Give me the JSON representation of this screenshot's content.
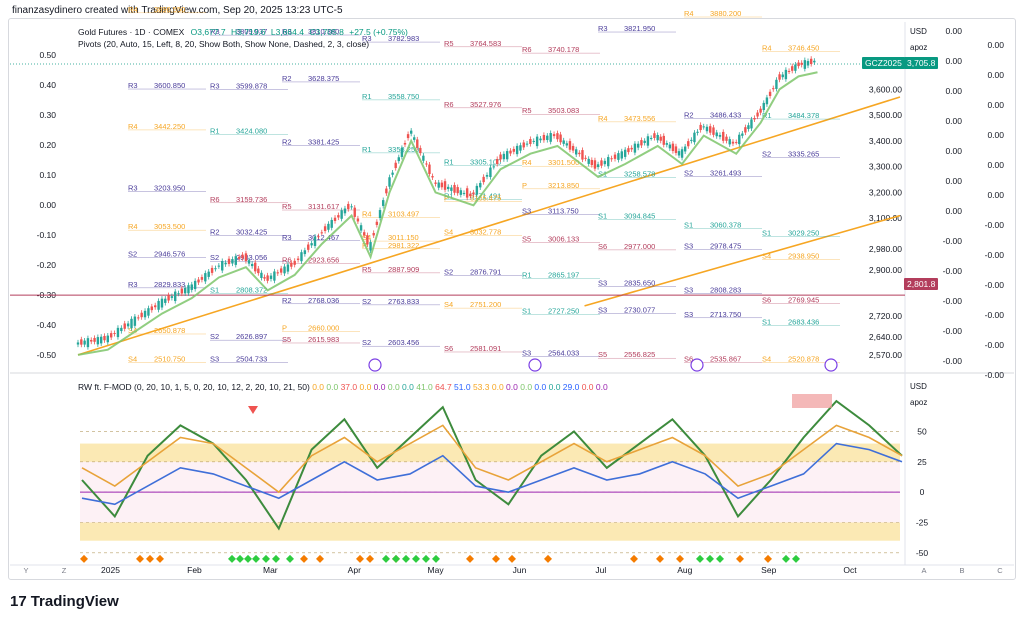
{
  "header": {
    "text": "finanzasydinero created with TradingView.com, Sep 20, 2025 13:23 UTC-5"
  },
  "brand": {
    "logo": "17",
    "name": "TradingView"
  },
  "main_legend": {
    "title": "Gold Futures · 1D · COMEX",
    "o": "O3,677.7",
    "h": "H3,719.6",
    "l": "L3,664.4",
    "c": "C3,705.8",
    "chg": "+27.5 (+0.75%)",
    "pivots": "Pivots (20, Auto, 15, Left, 8, 20, Show Both, Show None, Dashed, 2, 3, close)"
  },
  "osc_legend": {
    "name": "RW ft. F-MOD (0, 20, 10, 1, 5, 0, 20, 10, 12, 2, 20, 10, 21, 50)",
    "values": [
      "0.0",
      "0.0",
      "37.0",
      "0.0",
      "0.0",
      "0.0",
      "0.0",
      "41.0",
      "64.7",
      "51.0",
      "53.3",
      "0.0",
      "0.0",
      "0.0",
      "0.0",
      "0.0",
      "29.0",
      "0.0",
      "0.0"
    ]
  },
  "currency": "USD",
  "scale_mode": "apoz",
  "symbol_tag": "GCZ2025",
  "price_tag": "3,705.8",
  "line_tag": "2,801.8",
  "colors": {
    "up": "#26a69a",
    "down": "#ef5350",
    "trend": "#f6a623",
    "ma": "#7ec66b",
    "tag": "#089981",
    "line_tag": "#b33d5c"
  },
  "chart_data": [
    {
      "type": "candlestick",
      "title": "Gold Futures · 1D · COMEX",
      "x_ticks": [
        "2025",
        "Feb",
        "Mar",
        "Apr",
        "May",
        "Jun",
        "Jul",
        "Aug",
        "Sep",
        "Oct"
      ],
      "y_ticks": [
        "3,600.00",
        "3,500.00",
        "3,400.00",
        "3,300.00",
        "3,200.00",
        "3,100.00",
        "2,980.00",
        "2,900.00",
        "2,801.8",
        "2,720.00",
        "2,640.00",
        "2,570.00"
      ],
      "y_range": [
        2550,
        3760
      ],
      "left_ticks": [
        "0.50",
        "0.40",
        "0.30",
        "0.20",
        "0.10",
        "0.00",
        "-0.10",
        "-0.20",
        "-0.30",
        "-0.40",
        "-0.50"
      ],
      "close_path": [
        [
          "2024-12-20",
          2610
        ],
        [
          "2024-12-31",
          2630
        ],
        [
          "2025-01-10",
          2700
        ],
        [
          "2025-01-20",
          2770
        ],
        [
          "2025-01-31",
          2830
        ],
        [
          "2025-02-10",
          2910
        ],
        [
          "2025-02-20",
          2950
        ],
        [
          "2025-02-28",
          2860
        ],
        [
          "2025-03-10",
          2920
        ],
        [
          "2025-03-20",
          3040
        ],
        [
          "2025-03-31",
          3150
        ],
        [
          "2025-04-07",
          2990
        ],
        [
          "2025-04-14",
          3240
        ],
        [
          "2025-04-22",
          3440
        ],
        [
          "2025-05-01",
          3240
        ],
        [
          "2025-05-15",
          3190
        ],
        [
          "2025-05-25",
          3330
        ],
        [
          "2025-06-05",
          3390
        ],
        [
          "2025-06-15",
          3420
        ],
        [
          "2025-06-30",
          3300
        ],
        [
          "2025-07-10",
          3350
        ],
        [
          "2025-07-22",
          3420
        ],
        [
          "2025-07-31",
          3350
        ],
        [
          "2025-08-08",
          3460
        ],
        [
          "2025-08-20",
          3390
        ],
        [
          "2025-08-29",
          3510
        ],
        [
          "2025-09-05",
          3640
        ],
        [
          "2025-09-12",
          3690
        ],
        [
          "2025-09-19",
          3705.8
        ]
      ],
      "pivot_labels": [
        {
          "label": "R4",
          "value": "3896.550"
        },
        {
          "label": "R3",
          "value": "3809.937"
        },
        {
          "label": "R3",
          "value": "3810.380"
        },
        {
          "label": "R3",
          "value": "3782.983"
        },
        {
          "label": "R5",
          "value": "3764.583"
        },
        {
          "label": "R6",
          "value": "3740.178"
        },
        {
          "label": "R3",
          "value": "3821.950"
        },
        {
          "label": "R4",
          "value": "3880.200"
        },
        {
          "label": "R4",
          "value": "3746.450"
        },
        {
          "label": "R3",
          "value": "3600.850"
        },
        {
          "label": "R3",
          "value": "3599.878"
        },
        {
          "label": "R2",
          "value": "3628.375"
        },
        {
          "label": "R1",
          "value": "3558.750"
        },
        {
          "label": "R6",
          "value": "3527.976"
        },
        {
          "label": "R5",
          "value": "3503.083"
        },
        {
          "label": "R4",
          "value": "3473.556"
        },
        {
          "label": "R2",
          "value": "3486.433"
        },
        {
          "label": "R1",
          "value": "3484.378"
        },
        {
          "label": "R4",
          "value": "3442.250"
        },
        {
          "label": "R1",
          "value": "3424.080"
        },
        {
          "label": "R2",
          "value": "3381.425"
        },
        {
          "label": "R1",
          "value": "3353.250"
        },
        {
          "label": "R1",
          "value": "3305.100"
        },
        {
          "label": "R4",
          "value": "3301.500"
        },
        {
          "label": "S1",
          "value": "3258.578"
        },
        {
          "label": "S2",
          "value": "3261.493"
        },
        {
          "label": "S2",
          "value": "3335.265"
        },
        {
          "label": "R3",
          "value": "3203.950"
        },
        {
          "label": "R6",
          "value": "3159.736"
        },
        {
          "label": "R5",
          "value": "3131.617"
        },
        {
          "label": "R4",
          "value": "3103.497"
        },
        {
          "label": "R1",
          "value": "3171.491"
        },
        {
          "label": "S3",
          "value": "3113.750"
        },
        {
          "label": "S1",
          "value": "3094.845"
        },
        {
          "label": "S1",
          "value": "3060.378"
        },
        {
          "label": "S1",
          "value": "3029.250"
        },
        {
          "label": "R4",
          "value": "3053.500"
        },
        {
          "label": "R2",
          "value": "3032.425"
        },
        {
          "label": "R3",
          "value": "3012.467"
        },
        {
          "label": "S4",
          "value": "3011.150"
        },
        {
          "label": "S4",
          "value": "3032.778"
        },
        {
          "label": "S5",
          "value": "3006.133"
        },
        {
          "label": "S6",
          "value": "2977.000"
        },
        {
          "label": "S3",
          "value": "2978.475"
        },
        {
          "label": "S4",
          "value": "2938.950"
        },
        {
          "label": "S2",
          "value": "2946.576"
        },
        {
          "label": "S2",
          "value": "2933.056"
        },
        {
          "label": "R6",
          "value": "2923.656"
        },
        {
          "label": "R5",
          "value": "2887.909"
        },
        {
          "label": "S2",
          "value": "2876.791"
        },
        {
          "label": "R1",
          "value": "2865.197"
        },
        {
          "label": "S3",
          "value": "2835.650"
        },
        {
          "label": "S3",
          "value": "2808.283"
        },
        {
          "label": "S6",
          "value": "2769.945"
        },
        {
          "label": "R3",
          "value": "2829.833"
        },
        {
          "label": "S1",
          "value": "2808.372"
        },
        {
          "label": "R2",
          "value": "2768.036"
        },
        {
          "label": "S2",
          "value": "2763.833"
        },
        {
          "label": "S4",
          "value": "2751.200"
        },
        {
          "label": "S1",
          "value": "2727.250"
        },
        {
          "label": "S3",
          "value": "2730.077"
        },
        {
          "label": "S3",
          "value": "2713.750"
        },
        {
          "label": "S1",
          "value": "2683.436"
        },
        {
          "label": "S4",
          "value": "2650.878"
        },
        {
          "label": "S2",
          "value": "2626.897"
        },
        {
          "label": "S5",
          "value": "2615.983"
        },
        {
          "label": "S2",
          "value": "2603.456"
        },
        {
          "label": "S6",
          "value": "2581.091"
        },
        {
          "label": "S3",
          "value": "2564.033"
        },
        {
          "label": "S5",
          "value": "2556.825"
        },
        {
          "label": "S6",
          "value": "2535.867"
        },
        {
          "label": "S4",
          "value": "2520.878"
        },
        {
          "label": "S4",
          "value": "2510.750"
        },
        {
          "label": "S3",
          "value": "2504.733"
        },
        {
          "label": "P",
          "value": "2660.000"
        },
        {
          "label": "P",
          "value": "2981.322"
        },
        {
          "label": "P",
          "value": "3165.475"
        },
        {
          "label": "P",
          "value": "3213.850"
        }
      ]
    },
    {
      "type": "line",
      "title": "RW ft. F-MOD",
      "y_ticks": [
        "50",
        "25",
        "0",
        "-25",
        "-50"
      ],
      "y_range": [
        -60,
        80
      ],
      "bands": [
        [
          25,
          40
        ],
        [
          -40,
          -25
        ]
      ],
      "series": [
        {
          "values": [
            10,
            -20,
            30,
            55,
            40,
            10,
            -30,
            35,
            60,
            20,
            45,
            70,
            10,
            -10,
            30,
            50,
            20,
            40,
            60,
            30,
            -20,
            10,
            45,
            75,
            55,
            30
          ]
        },
        {
          "values": [
            20,
            5,
            25,
            45,
            40,
            20,
            0,
            30,
            45,
            25,
            40,
            55,
            20,
            10,
            25,
            40,
            25,
            35,
            45,
            30,
            5,
            15,
            35,
            55,
            45,
            30
          ]
        },
        {
          "values": [
            -5,
            -10,
            5,
            20,
            15,
            5,
            -5,
            10,
            25,
            10,
            15,
            30,
            5,
            0,
            10,
            20,
            10,
            15,
            25,
            15,
            -5,
            5,
            15,
            40,
            35,
            25
          ]
        }
      ]
    }
  ]
}
